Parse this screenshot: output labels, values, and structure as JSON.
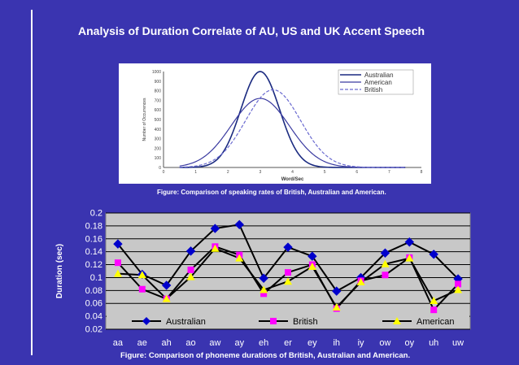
{
  "slide": {
    "title": "Analysis of  Duration Correlate of AU, US and UK Accent Speech",
    "caption_top": "Figure: Comparison of speaking rates of British, Australian and American.",
    "caption_bottom": "Figure: Comparison of phoneme durations of British, Australian and American."
  },
  "colors": {
    "background": "#3a34b0",
    "australian": "#0000cc",
    "british": "#ff00ff",
    "american": "#ffff00",
    "plot_bg": "#c8c8c8"
  },
  "figure_top": {
    "type": "line",
    "title": "",
    "xlabel": "Word/Sec",
    "ylabel": "Number of Occurrences",
    "x_ticks": [
      "0",
      "1",
      "2",
      "3",
      "4",
      "5",
      "6",
      "7",
      "8"
    ],
    "y_ticks": [
      "0",
      "100",
      "200",
      "300",
      "400",
      "500",
      "600",
      "700",
      "800",
      "900",
      "1000"
    ],
    "ylim": [
      0,
      1000
    ],
    "xlim": [
      0,
      8
    ],
    "legend": [
      "Australian",
      "American",
      "British"
    ],
    "series": [
      {
        "name": "Australian",
        "mean": 3.0,
        "sd": 0.6,
        "peak": 1000
      },
      {
        "name": "American",
        "mean": 3.0,
        "sd": 0.9,
        "peak": 720
      },
      {
        "name": "British",
        "mean": 3.4,
        "sd": 0.85,
        "peak": 810
      }
    ]
  },
  "chart_data": {
    "type": "line",
    "title": "",
    "xlabel": "",
    "ylabel": "Duration (sec)",
    "ylim": [
      0.02,
      0.2
    ],
    "y_ticks": [
      "0.02",
      "0.04",
      "0.06",
      "0.08",
      "0.1",
      "0.12",
      "0.14",
      "0.16",
      "0.18",
      "0.2"
    ],
    "categories": [
      "aa",
      "ae",
      "ah",
      "ao",
      "aw",
      "ay",
      "eh",
      "er",
      "ey",
      "ih",
      "iy",
      "ow",
      "oy",
      "uh",
      "uw"
    ],
    "series": [
      {
        "name": "Australian",
        "values": [
          0.152,
          0.105,
          0.088,
          0.141,
          0.176,
          0.182,
          0.099,
          0.147,
          0.133,
          0.079,
          0.1,
          0.138,
          0.155,
          0.136,
          0.098
        ]
      },
      {
        "name": "British",
        "values": [
          0.123,
          0.082,
          0.067,
          0.112,
          0.148,
          0.135,
          0.075,
          0.108,
          0.12,
          0.052,
          0.095,
          0.104,
          0.131,
          0.05,
          0.09
        ]
      },
      {
        "name": "American",
        "values": [
          0.106,
          0.104,
          0.067,
          0.101,
          0.145,
          0.13,
          0.081,
          0.094,
          0.117,
          0.054,
          0.093,
          0.121,
          0.13,
          0.064,
          0.081
        ]
      }
    ],
    "legend_position": "bottom-inside"
  }
}
